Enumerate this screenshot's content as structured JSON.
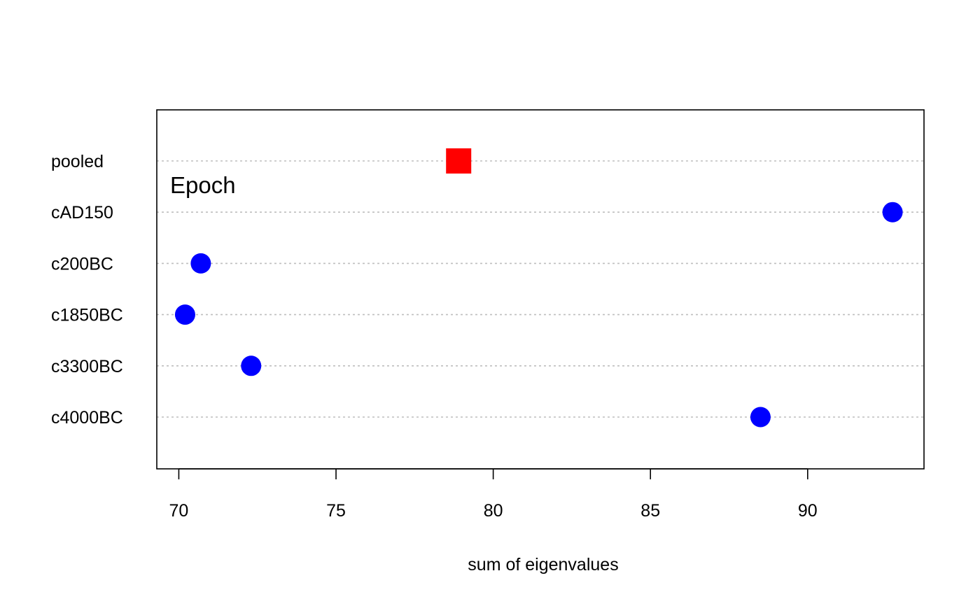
{
  "chart_data": {
    "type": "scatter",
    "subtype": "dotchart",
    "xlabel": "sum of eigenvalues",
    "xlim": [
      69.3,
      93.7
    ],
    "xticks": [
      70,
      75,
      80,
      85,
      90
    ],
    "categories": [
      "pooled",
      "cAD150",
      "c200BC",
      "c1850BC",
      "c3300BC",
      "c4000BC"
    ],
    "annotation": "Epoch",
    "grid": "dotted horizontal per category",
    "series": [
      {
        "marker": "square",
        "color": "#ff0000",
        "points": [
          {
            "category": "pooled",
            "value": 78.9
          }
        ]
      },
      {
        "marker": "circle",
        "color": "#0000ff",
        "points": [
          {
            "category": "cAD150",
            "value": 92.7
          },
          {
            "category": "c200BC",
            "value": 70.7
          },
          {
            "category": "c1850BC",
            "value": 70.2
          },
          {
            "category": "c3300BC",
            "value": 72.3
          },
          {
            "category": "c4000BC",
            "value": 88.5
          }
        ]
      }
    ]
  }
}
